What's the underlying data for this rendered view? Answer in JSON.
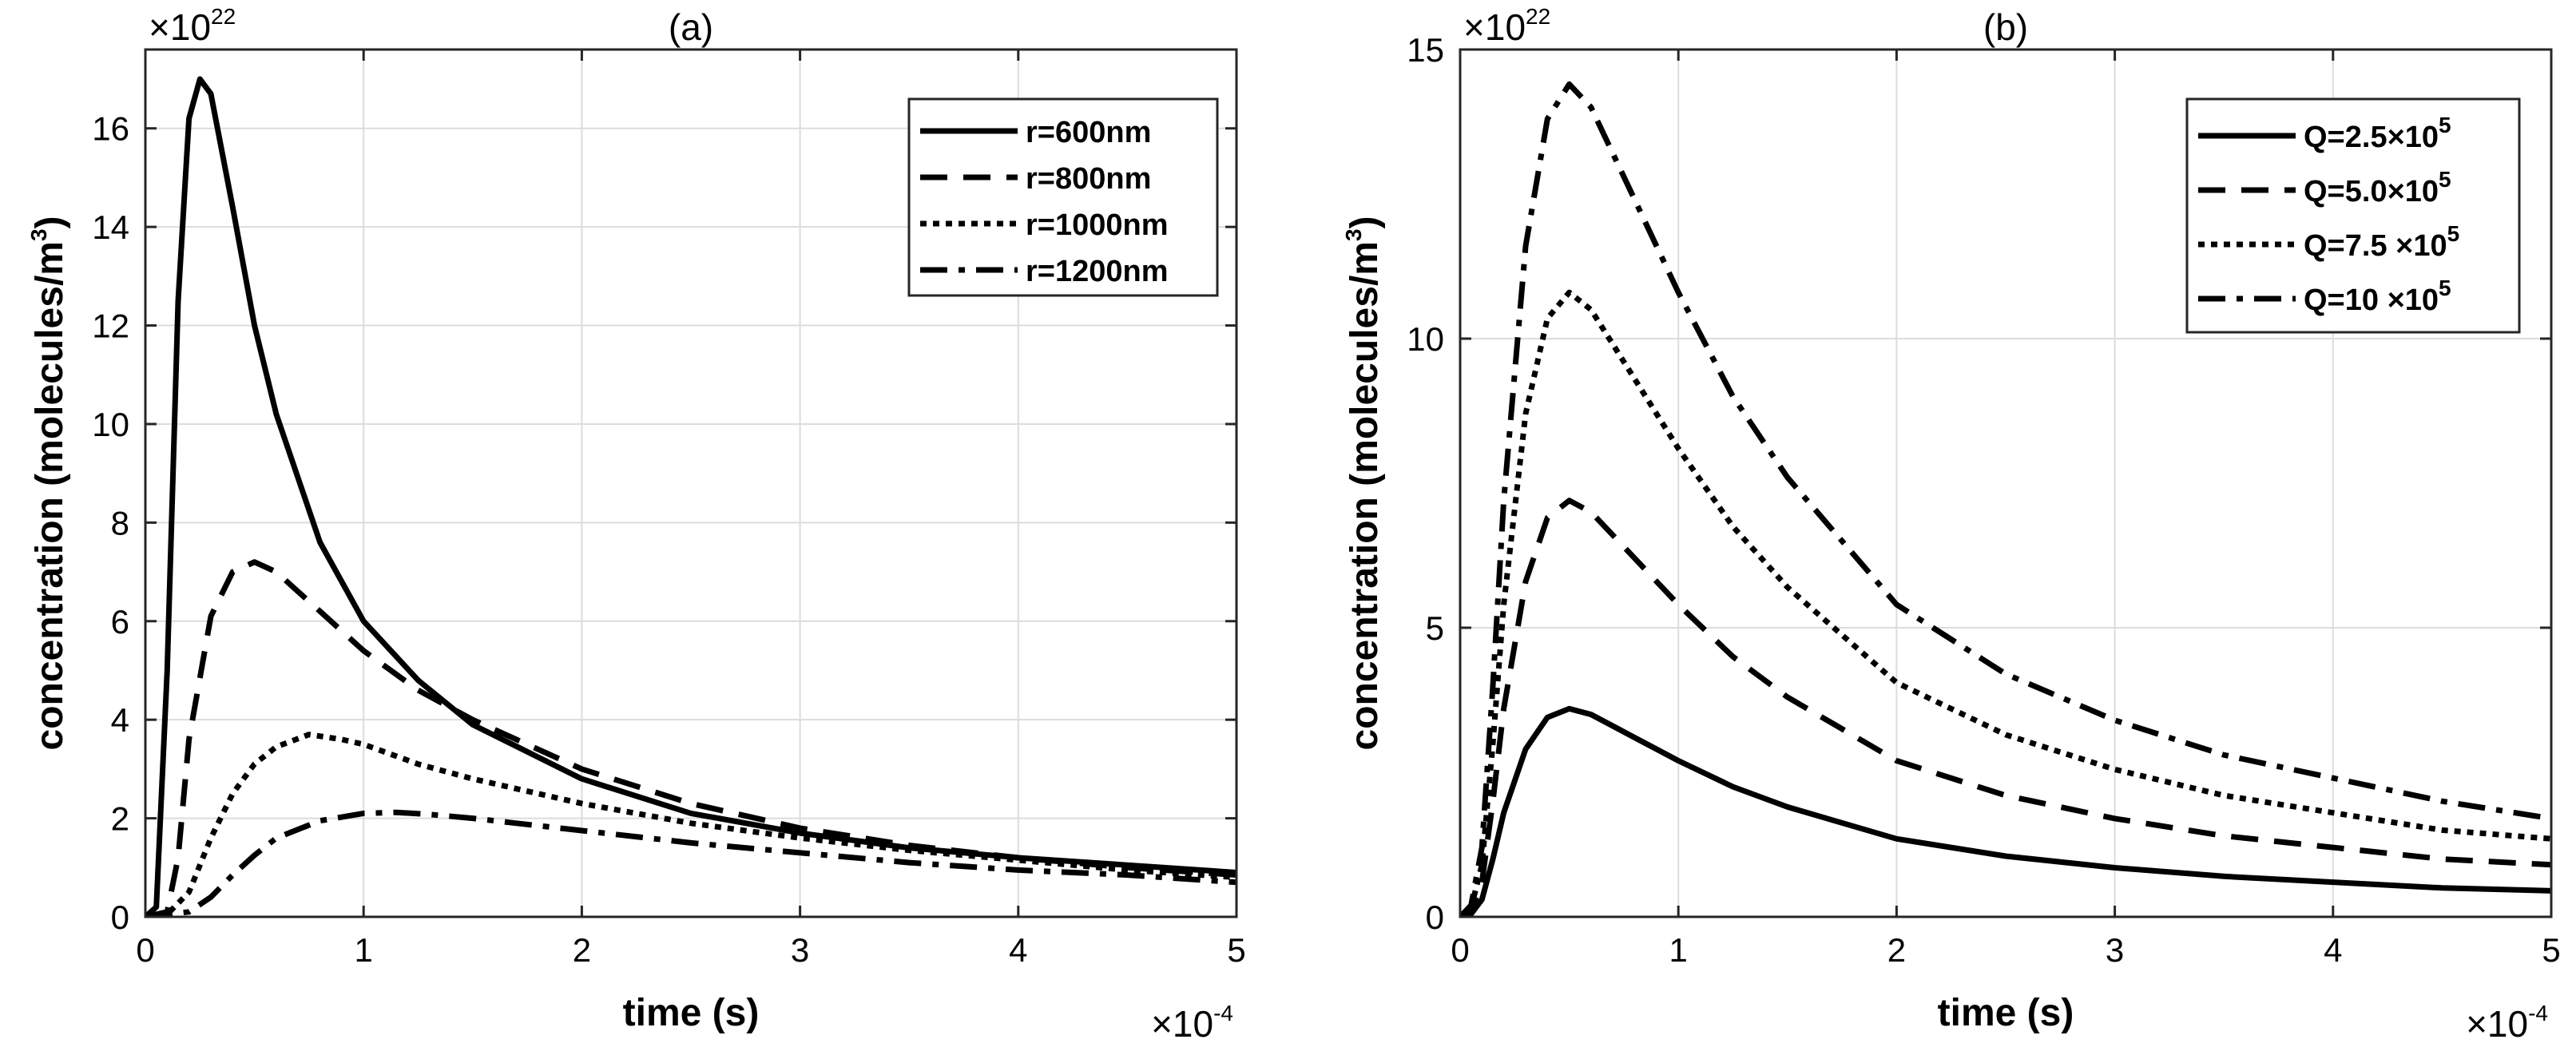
{
  "chart_data": [
    {
      "type": "line",
      "title": "(a)",
      "xlabel": "time (s)",
      "ylabel": "concentration (molecules/m",
      "ylabel_sup": "3",
      "ylabel_close": ")",
      "x_multiplier": "×10",
      "x_multiplier_exp": "-4",
      "y_multiplier": "×10",
      "y_multiplier_exp": "22",
      "xlim": [
        0,
        5
      ],
      "ylim": [
        0,
        17.6
      ],
      "xticks": [
        0,
        1,
        2,
        3,
        4,
        5
      ],
      "yticks": [
        0,
        2,
        4,
        6,
        8,
        10,
        12,
        14,
        16
      ],
      "grid": true,
      "legend_position": "top-right",
      "series": [
        {
          "name": "r=600nm",
          "label_text": "r=600nm",
          "dash": "solid",
          "x": [
            0,
            0.05,
            0.1,
            0.15,
            0.2,
            0.25,
            0.3,
            0.4,
            0.5,
            0.6,
            0.8,
            1.0,
            1.25,
            1.5,
            2.0,
            2.5,
            3.0,
            3.5,
            4.0,
            4.5,
            5.0
          ],
          "y": [
            0,
            0.2,
            5.0,
            12.5,
            16.2,
            17.0,
            16.7,
            14.4,
            12.0,
            10.2,
            7.6,
            6.0,
            4.8,
            3.9,
            2.8,
            2.1,
            1.7,
            1.4,
            1.2,
            1.05,
            0.9
          ]
        },
        {
          "name": "r=800nm",
          "label_text": "r=800nm",
          "dash": "dashed",
          "x": [
            0,
            0.1,
            0.15,
            0.2,
            0.3,
            0.4,
            0.5,
            0.6,
            0.7,
            0.8,
            1.0,
            1.25,
            1.5,
            2.0,
            2.5,
            3.0,
            3.5,
            4.0,
            4.5,
            5.0
          ],
          "y": [
            0,
            0.1,
            1.2,
            3.6,
            6.1,
            7.0,
            7.2,
            7.0,
            6.6,
            6.2,
            5.4,
            4.6,
            4.0,
            3.0,
            2.3,
            1.8,
            1.45,
            1.2,
            1.0,
            0.85
          ]
        },
        {
          "name": "r=1000nm",
          "label_text": "r=1000nm",
          "dash": "dotted",
          "x": [
            0,
            0.1,
            0.2,
            0.3,
            0.4,
            0.5,
            0.6,
            0.75,
            0.9,
            1.0,
            1.25,
            1.5,
            2.0,
            2.5,
            3.0,
            3.5,
            4.0,
            4.5,
            5.0
          ],
          "y": [
            0,
            0.05,
            0.5,
            1.6,
            2.5,
            3.1,
            3.45,
            3.7,
            3.6,
            3.5,
            3.1,
            2.8,
            2.3,
            1.9,
            1.6,
            1.35,
            1.15,
            0.95,
            0.8
          ]
        },
        {
          "name": "r=1200nm",
          "label_text": "r=1200nm",
          "dash": "dashdot",
          "x": [
            0,
            0.2,
            0.3,
            0.4,
            0.5,
            0.6,
            0.8,
            1.0,
            1.15,
            1.3,
            1.5,
            2.0,
            2.5,
            3.0,
            3.5,
            4.0,
            4.5,
            5.0
          ],
          "y": [
            0,
            0.1,
            0.4,
            0.85,
            1.25,
            1.6,
            1.95,
            2.1,
            2.12,
            2.08,
            2.0,
            1.75,
            1.5,
            1.3,
            1.1,
            0.95,
            0.85,
            0.7
          ]
        }
      ]
    },
    {
      "type": "line",
      "title": "(b)",
      "xlabel": "time (s)",
      "ylabel": "concentration (molecules/m",
      "ylabel_sup": "3",
      "ylabel_close": ")",
      "x_multiplier": "×10",
      "x_multiplier_exp": "-4",
      "y_multiplier": "×10",
      "y_multiplier_exp": "22",
      "xlim": [
        0,
        5
      ],
      "ylim": [
        0,
        15
      ],
      "xticks": [
        0,
        1,
        2,
        3,
        4,
        5
      ],
      "yticks": [
        0,
        5,
        10,
        15
      ],
      "grid": true,
      "legend_position": "top-right",
      "series": [
        {
          "name": "Q=2.5×10^5",
          "label_text": "Q=2.5×10",
          "label_exp": "5",
          "dash": "solid",
          "x": [
            0,
            0.05,
            0.1,
            0.15,
            0.2,
            0.3,
            0.4,
            0.5,
            0.6,
            0.8,
            1.0,
            1.25,
            1.5,
            2.0,
            2.5,
            3.0,
            3.5,
            4.0,
            4.5,
            5.0
          ],
          "y": [
            0,
            0.05,
            0.3,
            1.0,
            1.8,
            2.9,
            3.45,
            3.6,
            3.5,
            3.1,
            2.7,
            2.25,
            1.9,
            1.35,
            1.05,
            0.85,
            0.7,
            0.6,
            0.5,
            0.45
          ]
        },
        {
          "name": "Q=5.0×10^5",
          "label_text": "Q=5.0×10",
          "label_exp": "5",
          "dash": "dashed",
          "x": [
            0,
            0.05,
            0.1,
            0.15,
            0.2,
            0.3,
            0.4,
            0.5,
            0.6,
            0.8,
            1.0,
            1.25,
            1.5,
            2.0,
            2.5,
            3.0,
            3.5,
            4.0,
            4.5,
            5.0
          ],
          "y": [
            0,
            0.1,
            0.6,
            2.0,
            3.6,
            5.8,
            6.9,
            7.2,
            7.0,
            6.2,
            5.4,
            4.5,
            3.8,
            2.7,
            2.1,
            1.7,
            1.4,
            1.2,
            1.0,
            0.9
          ]
        },
        {
          "name": "Q=7.5×10^5",
          "label_text": "Q=7.5 ×10",
          "label_exp": "5",
          "dash": "dotted",
          "x": [
            0,
            0.05,
            0.1,
            0.15,
            0.2,
            0.3,
            0.4,
            0.5,
            0.6,
            0.8,
            1.0,
            1.25,
            1.5,
            2.0,
            2.5,
            3.0,
            3.5,
            4.0,
            4.5,
            5.0
          ],
          "y": [
            0,
            0.15,
            0.9,
            3.0,
            5.4,
            8.7,
            10.35,
            10.8,
            10.5,
            9.3,
            8.1,
            6.75,
            5.7,
            4.05,
            3.15,
            2.55,
            2.1,
            1.8,
            1.5,
            1.35
          ]
        },
        {
          "name": "Q=10×10^5",
          "label_text": "Q=10 ×10",
          "label_exp": "5",
          "dash": "dashdot",
          "x": [
            0,
            0.05,
            0.1,
            0.15,
            0.2,
            0.3,
            0.4,
            0.5,
            0.6,
            0.8,
            1.0,
            1.25,
            1.5,
            2.0,
            2.5,
            3.0,
            3.5,
            4.0,
            4.5,
            5.0
          ],
          "y": [
            0,
            0.2,
            1.2,
            4.0,
            7.2,
            11.6,
            13.8,
            14.4,
            14.0,
            12.4,
            10.8,
            9.0,
            7.6,
            5.4,
            4.2,
            3.4,
            2.8,
            2.4,
            2.0,
            1.7
          ]
        }
      ]
    }
  ]
}
